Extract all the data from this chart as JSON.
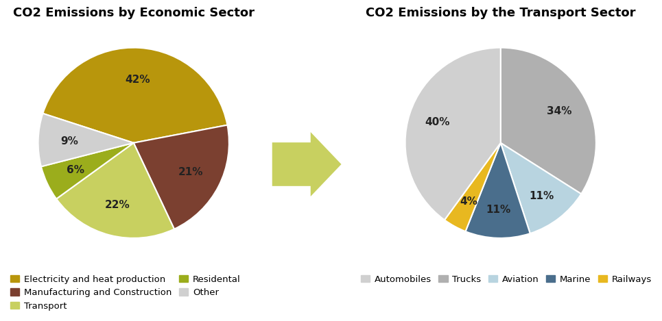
{
  "left_pie": {
    "title": "CO2 Emissions by Economic Sector",
    "values": [
      42,
      21,
      22,
      6,
      9
    ],
    "colors": [
      "#B8960C",
      "#7B4030",
      "#C8D060",
      "#9BAD1C",
      "#D0D0D0"
    ],
    "pct_labels": [
      "42%",
      "21%",
      "22%",
      "6%",
      "9%"
    ],
    "startangle": 162,
    "legend_labels": [
      "Electricity and heat production",
      "Manufacturing and Construction",
      "Transport",
      "Residental",
      "Other"
    ]
  },
  "right_pie": {
    "title": "CO2 Emissions by the Transport Sector",
    "values": [
      34,
      11,
      11,
      4,
      40
    ],
    "colors": [
      "#B0B0B0",
      "#B8D4E0",
      "#4A6E8C",
      "#E8B820",
      "#D0D0D0"
    ],
    "pct_labels": [
      "34%",
      "11%",
      "11%",
      "4%",
      "40%"
    ],
    "startangle": 90,
    "legend_labels": [
      "Trucks",
      "Aviation",
      "Marine",
      "Railways",
      "Automobiles"
    ],
    "legend_order_labels": [
      "Automobiles",
      "Trucks",
      "Aviation",
      "Marine",
      "Railways"
    ],
    "legend_order_colors": [
      "#D0D0D0",
      "#B0B0B0",
      "#B8D4E0",
      "#4A6E8C",
      "#E8B820"
    ]
  },
  "arrow_color": "#C8D060",
  "title_fontsize": 13,
  "label_fontsize": 11,
  "legend_fontsize": 9.5
}
